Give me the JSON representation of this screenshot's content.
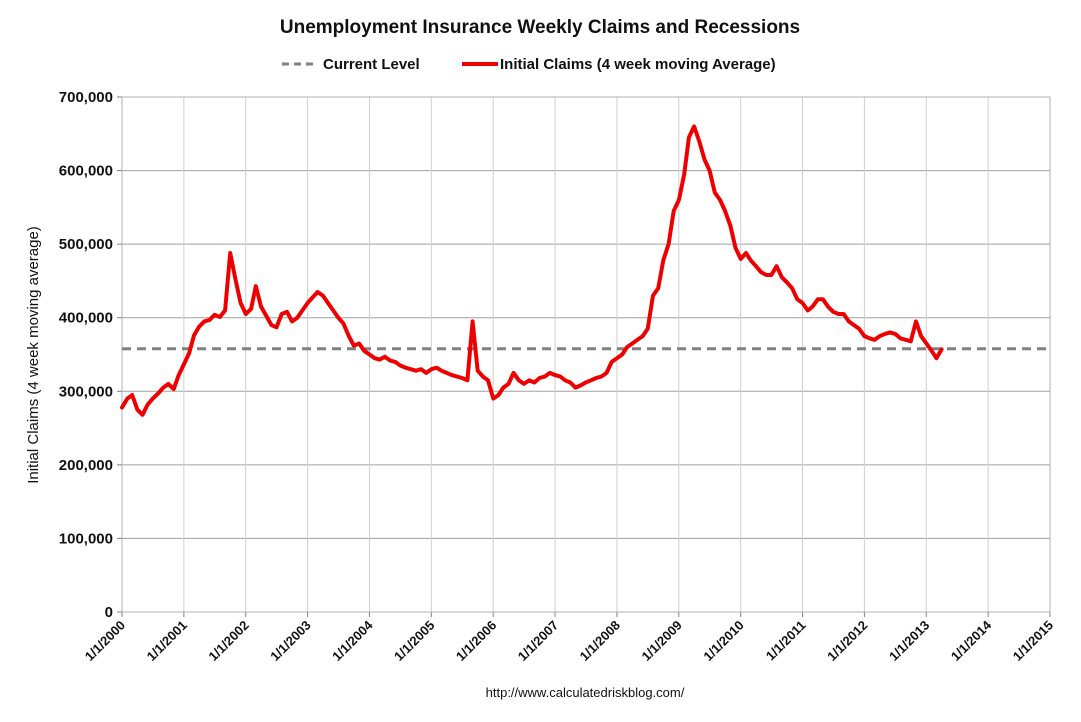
{
  "chart_data": {
    "type": "line",
    "title": "Unemployment Insurance Weekly Claims and Recessions",
    "xlabel": "",
    "ylabel": "Initial Claims (4 week moving average)",
    "source": "http://www.calculatedriskblog.com/",
    "xlim": [
      "2000-01-01",
      "2015-01-01"
    ],
    "ylim": [
      0,
      700000
    ],
    "y_ticks": [
      "0",
      "100,000",
      "200,000",
      "300,000",
      "400,000",
      "500,000",
      "600,000",
      "700,000"
    ],
    "x_ticks": [
      "1/1/2000",
      "1/1/2001",
      "1/1/2002",
      "1/1/2003",
      "1/1/2004",
      "1/1/2005",
      "1/1/2006",
      "1/1/2007",
      "1/1/2008",
      "1/1/2009",
      "1/1/2010",
      "1/1/2011",
      "1/1/2012",
      "1/1/2013",
      "1/1/2014",
      "1/1/2015"
    ],
    "grid": true,
    "legend_position": "top-center",
    "series": [
      {
        "name": "Current Level",
        "style": "dashed",
        "color": "#808080",
        "x": [
          "2000-01-01",
          "2015-01-01"
        ],
        "values": [
          357750,
          357750
        ]
      },
      {
        "name": "Initial Claims (4 week moving Average)",
        "style": "solid",
        "color": "#ee0000",
        "x": [
          "2000-01-01",
          "2000-02-01",
          "2000-03-01",
          "2000-04-01",
          "2000-05-01",
          "2000-06-01",
          "2000-07-01",
          "2000-08-01",
          "2000-09-01",
          "2000-10-01",
          "2000-11-01",
          "2000-12-01",
          "2001-01-01",
          "2001-02-01",
          "2001-03-01",
          "2001-04-01",
          "2001-05-01",
          "2001-06-01",
          "2001-07-01",
          "2001-08-01",
          "2001-09-01",
          "2001-10-01",
          "2001-11-01",
          "2001-12-01",
          "2002-01-01",
          "2002-02-01",
          "2002-03-01",
          "2002-04-01",
          "2002-05-01",
          "2002-06-01",
          "2002-07-01",
          "2002-08-01",
          "2002-09-01",
          "2002-10-01",
          "2002-11-01",
          "2002-12-01",
          "2003-01-01",
          "2003-02-01",
          "2003-03-01",
          "2003-04-01",
          "2003-05-01",
          "2003-06-01",
          "2003-07-01",
          "2003-08-01",
          "2003-09-01",
          "2003-10-01",
          "2003-11-01",
          "2003-12-01",
          "2004-01-01",
          "2004-02-01",
          "2004-03-01",
          "2004-04-01",
          "2004-05-01",
          "2004-06-01",
          "2004-07-01",
          "2004-08-01",
          "2004-09-01",
          "2004-10-01",
          "2004-11-01",
          "2004-12-01",
          "2005-01-01",
          "2005-02-01",
          "2005-03-01",
          "2005-04-01",
          "2005-05-01",
          "2005-06-01",
          "2005-07-01",
          "2005-08-01",
          "2005-09-01",
          "2005-10-01",
          "2005-11-01",
          "2005-12-01",
          "2006-01-01",
          "2006-02-01",
          "2006-03-01",
          "2006-04-01",
          "2006-05-01",
          "2006-06-01",
          "2006-07-01",
          "2006-08-01",
          "2006-09-01",
          "2006-10-01",
          "2006-11-01",
          "2006-12-01",
          "2007-01-01",
          "2007-02-01",
          "2007-03-01",
          "2007-04-01",
          "2007-05-01",
          "2007-06-01",
          "2007-07-01",
          "2007-08-01",
          "2007-09-01",
          "2007-10-01",
          "2007-11-01",
          "2007-12-01",
          "2008-01-01",
          "2008-02-01",
          "2008-03-01",
          "2008-04-01",
          "2008-05-01",
          "2008-06-01",
          "2008-07-01",
          "2008-08-01",
          "2008-09-01",
          "2008-10-01",
          "2008-11-01",
          "2008-12-01",
          "2009-01-01",
          "2009-02-01",
          "2009-03-01",
          "2009-04-01",
          "2009-05-01",
          "2009-06-01",
          "2009-07-01",
          "2009-08-01",
          "2009-09-01",
          "2009-10-01",
          "2009-11-01",
          "2009-12-01",
          "2010-01-01",
          "2010-02-01",
          "2010-03-01",
          "2010-04-01",
          "2010-05-01",
          "2010-06-01",
          "2010-07-01",
          "2010-08-01",
          "2010-09-01",
          "2010-10-01",
          "2010-11-01",
          "2010-12-01",
          "2011-01-01",
          "2011-02-01",
          "2011-03-01",
          "2011-04-01",
          "2011-05-01",
          "2011-06-01",
          "2011-07-01",
          "2011-08-01",
          "2011-09-01",
          "2011-10-01",
          "2011-11-01",
          "2011-12-01",
          "2012-01-01",
          "2012-02-01",
          "2012-03-01",
          "2012-04-01",
          "2012-05-01",
          "2012-06-01",
          "2012-07-01",
          "2012-08-01",
          "2012-09-01",
          "2012-10-01",
          "2012-11-01",
          "2012-12-01",
          "2013-01-01",
          "2013-02-01",
          "2013-03-01",
          "2013-04-01"
        ],
        "values": [
          278000,
          290000,
          295000,
          275000,
          268000,
          282000,
          290000,
          297000,
          305000,
          310000,
          303000,
          322000,
          337000,
          352000,
          376000,
          388000,
          395000,
          397000,
          404000,
          401000,
          410000,
          488000,
          452000,
          420000,
          405000,
          412000,
          443000,
          415000,
          403000,
          390000,
          387000,
          405000,
          408000,
          395000,
          400000,
          410000,
          420000,
          428000,
          435000,
          430000,
          420000,
          410000,
          400000,
          392000,
          375000,
          362000,
          365000,
          355000,
          350000,
          345000,
          343000,
          347000,
          342000,
          340000,
          335000,
          332000,
          330000,
          328000,
          330000,
          325000,
          330000,
          332000,
          328000,
          325000,
          322000,
          320000,
          318000,
          315000,
          395000,
          328000,
          320000,
          315000,
          290000,
          295000,
          305000,
          310000,
          325000,
          315000,
          310000,
          315000,
          312000,
          318000,
          320000,
          325000,
          322000,
          320000,
          315000,
          312000,
          305000,
          308000,
          312000,
          315000,
          318000,
          320000,
          325000,
          340000,
          345000,
          350000,
          360000,
          365000,
          370000,
          375000,
          385000,
          430000,
          440000,
          478000,
          500000,
          545000,
          560000,
          595000,
          645000,
          660000,
          640000,
          615000,
          600000,
          570000,
          560000,
          545000,
          525000,
          495000,
          480000,
          488000,
          478000,
          470000,
          462000,
          458000,
          458000,
          470000,
          455000,
          448000,
          440000,
          425000,
          420000,
          410000,
          415000,
          425000,
          425000,
          415000,
          408000,
          405000,
          405000,
          395000,
          390000,
          385000,
          375000,
          372000,
          370000,
          375000,
          378000,
          380000,
          378000,
          372000,
          370000,
          368000,
          395000,
          375000,
          365000,
          355000,
          345000,
          357000
        ]
      }
    ]
  }
}
